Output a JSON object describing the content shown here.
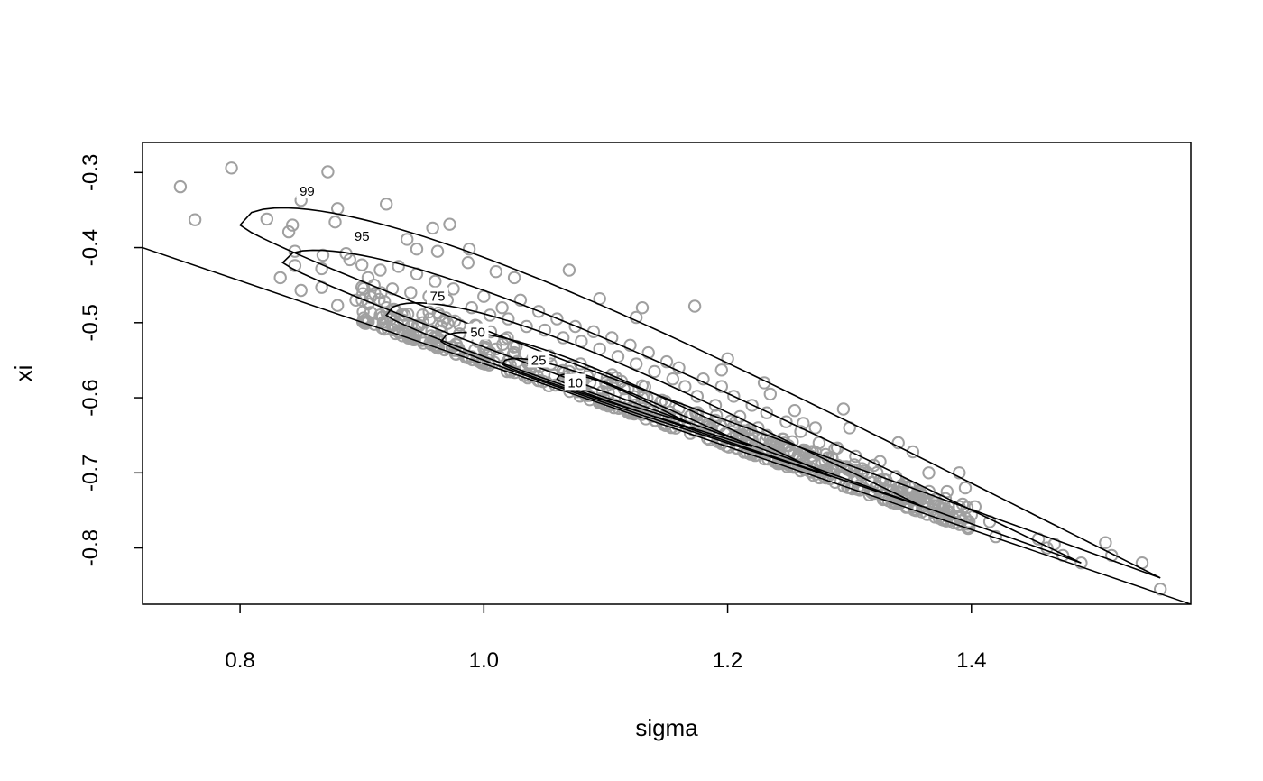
{
  "chart_data": {
    "type": "scatter",
    "title": "",
    "xlabel": "sigma",
    "ylabel": "xi",
    "xlim": [
      0.72,
      1.58
    ],
    "ylim": [
      -0.875,
      -0.26
    ],
    "x_ticks": [
      0.8,
      1.0,
      1.2,
      1.4
    ],
    "x_tick_labels": [
      "0.8",
      "1.0",
      "1.2",
      "1.4"
    ],
    "y_ticks": [
      -0.3,
      -0.4,
      -0.5,
      -0.6,
      -0.7,
      -0.8
    ],
    "y_tick_labels": [
      "-0.3",
      "-0.4",
      "-0.5",
      "-0.6",
      "-0.7",
      "-0.8"
    ],
    "point_color": "#a0a0a0",
    "line_color": "#000000",
    "boundary_line": {
      "x": [
        0.72,
        1.58
      ],
      "y": [
        -0.4,
        -0.875
      ]
    },
    "contours": [
      {
        "level": 99,
        "label": "99",
        "sigma_min": 0.8,
        "sigma_max": 1.555,
        "xi_at_min": -0.37,
        "xi_at_max": -0.84,
        "center_sigma": 1.18,
        "center_xi": -0.605,
        "half_width": 0.051,
        "label_sigma": 0.855,
        "label_xi": -0.325
      },
      {
        "level": 95,
        "label": "95",
        "sigma_min": 0.835,
        "sigma_max": 1.49,
        "xi_at_min": -0.42,
        "xi_at_max": -0.82,
        "center_sigma": 1.165,
        "center_xi": -0.62,
        "half_width": 0.04,
        "label_sigma": 0.9,
        "label_xi": -0.385
      },
      {
        "level": 75,
        "label": "75",
        "sigma_min": 0.92,
        "sigma_max": 1.36,
        "xi_at_min": -0.49,
        "xi_at_max": -0.745,
        "center_sigma": 1.14,
        "center_xi": -0.615,
        "half_width": 0.032,
        "label_sigma": 0.962,
        "label_xi": -0.465
      },
      {
        "level": 50,
        "label": "50",
        "sigma_min": 0.965,
        "sigma_max": 1.285,
        "xi_at_min": -0.525,
        "xi_at_max": -0.705,
        "center_sigma": 1.125,
        "center_xi": -0.615,
        "half_width": 0.023,
        "label_sigma": 0.995,
        "label_xi": -0.513
      },
      {
        "level": 25,
        "label": "25",
        "sigma_min": 1.015,
        "sigma_max": 1.22,
        "xi_at_min": -0.555,
        "xi_at_max": -0.665,
        "center_sigma": 1.118,
        "center_xi": -0.61,
        "half_width": 0.014,
        "label_sigma": 1.045,
        "label_xi": -0.55
      },
      {
        "level": 10,
        "label": "10",
        "sigma_min": 1.06,
        "sigma_max": 1.17,
        "xi_at_min": -0.575,
        "xi_at_max": -0.635,
        "center_sigma": 1.115,
        "center_xi": -0.605,
        "half_width": 0.01,
        "label_sigma": 1.075,
        "label_xi": -0.58
      }
    ],
    "points_main": [
      [
        0.751,
        -0.319
      ],
      [
        0.793,
        -0.294
      ],
      [
        0.872,
        -0.299
      ],
      [
        0.763,
        -0.363
      ],
      [
        0.822,
        -0.362
      ],
      [
        0.85,
        -0.337
      ],
      [
        0.88,
        -0.348
      ],
      [
        0.878,
        -0.366
      ],
      [
        0.843,
        -0.37
      ],
      [
        0.84,
        -0.379
      ],
      [
        0.92,
        -0.342
      ],
      [
        0.958,
        -0.374
      ],
      [
        0.972,
        -0.369
      ],
      [
        0.937,
        -0.389
      ],
      [
        0.945,
        -0.402
      ],
      [
        0.962,
        -0.405
      ],
      [
        0.988,
        -0.402
      ],
      [
        0.887,
        -0.408
      ],
      [
        0.89,
        -0.416
      ],
      [
        0.9,
        -0.423
      ],
      [
        0.845,
        -0.405
      ],
      [
        0.845,
        -0.424
      ],
      [
        0.867,
        -0.428
      ],
      [
        0.868,
        -0.41
      ],
      [
        0.833,
        -0.44
      ],
      [
        0.85,
        -0.457
      ],
      [
        0.867,
        -0.453
      ],
      [
        0.88,
        -0.477
      ],
      [
        0.987,
        -0.42
      ],
      [
        1.01,
        -0.432
      ],
      [
        1.025,
        -0.44
      ],
      [
        1.07,
        -0.43
      ],
      [
        1.125,
        -0.493
      ],
      [
        1.13,
        -0.48
      ],
      [
        1.173,
        -0.478
      ],
      [
        1.095,
        -0.468
      ],
      [
        1.2,
        -0.548
      ],
      [
        1.195,
        -0.563
      ],
      [
        1.23,
        -0.58
      ],
      [
        1.235,
        -0.595
      ],
      [
        1.255,
        -0.617
      ],
      [
        1.262,
        -0.634
      ],
      [
        1.272,
        -0.64
      ],
      [
        1.29,
        -0.667
      ],
      [
        1.295,
        -0.615
      ],
      [
        1.3,
        -0.64
      ],
      [
        1.325,
        -0.685
      ],
      [
        1.34,
        -0.66
      ],
      [
        1.352,
        -0.672
      ],
      [
        1.365,
        -0.7
      ],
      [
        1.38,
        -0.725
      ],
      [
        1.39,
        -0.7
      ],
      [
        1.395,
        -0.72
      ],
      [
        1.39,
        -0.745
      ],
      [
        1.39,
        -0.76
      ],
      [
        1.385,
        -0.76
      ],
      [
        1.4,
        -0.756
      ],
      [
        1.403,
        -0.745
      ],
      [
        1.398,
        -0.765
      ],
      [
        1.415,
        -0.765
      ],
      [
        1.42,
        -0.785
      ],
      [
        1.455,
        -0.788
      ],
      [
        1.462,
        -0.8
      ],
      [
        1.468,
        -0.795
      ],
      [
        1.475,
        -0.81
      ],
      [
        1.49,
        -0.82
      ],
      [
        1.51,
        -0.793
      ],
      [
        1.515,
        -0.81
      ],
      [
        1.54,
        -0.82
      ],
      [
        1.555,
        -0.855
      ],
      [
        1.35,
        -0.72
      ],
      [
        1.36,
        -0.73
      ],
      [
        1.33,
        -0.71
      ],
      [
        1.315,
        -0.7
      ],
      [
        1.3,
        -0.695
      ],
      [
        1.282,
        -0.68
      ],
      [
        1.268,
        -0.672
      ],
      [
        1.245,
        -0.655
      ],
      [
        1.225,
        -0.64
      ],
      [
        1.21,
        -0.625
      ],
      [
        1.19,
        -0.61
      ],
      [
        1.175,
        -0.598
      ],
      [
        1.165,
        -0.585
      ],
      [
        1.155,
        -0.575
      ],
      [
        1.14,
        -0.565
      ],
      [
        1.125,
        -0.555
      ],
      [
        1.11,
        -0.545
      ],
      [
        1.095,
        -0.535
      ],
      [
        1.08,
        -0.525
      ],
      [
        1.065,
        -0.52
      ],
      [
        1.05,
        -0.51
      ],
      [
        1.035,
        -0.505
      ],
      [
        1.02,
        -0.495
      ],
      [
        1.005,
        -0.49
      ],
      [
        0.99,
        -0.48
      ],
      [
        0.97,
        -0.47
      ],
      [
        0.955,
        -0.465
      ],
      [
        0.94,
        -0.46
      ],
      [
        0.925,
        -0.455
      ],
      [
        0.91,
        -0.45
      ],
      [
        0.905,
        -0.44
      ],
      [
        0.915,
        -0.43
      ],
      [
        0.93,
        -0.425
      ],
      [
        0.945,
        -0.435
      ],
      [
        0.96,
        -0.445
      ],
      [
        0.975,
        -0.455
      ],
      [
        1.0,
        -0.465
      ],
      [
        1.015,
        -0.48
      ],
      [
        1.03,
        -0.47
      ],
      [
        1.045,
        -0.485
      ],
      [
        1.06,
        -0.495
      ],
      [
        1.075,
        -0.505
      ],
      [
        1.09,
        -0.512
      ],
      [
        1.105,
        -0.52
      ],
      [
        1.12,
        -0.53
      ],
      [
        1.135,
        -0.54
      ],
      [
        1.15,
        -0.552
      ],
      [
        1.16,
        -0.56
      ],
      [
        1.18,
        -0.575
      ],
      [
        1.195,
        -0.585
      ],
      [
        1.205,
        -0.598
      ],
      [
        1.22,
        -0.61
      ],
      [
        1.232,
        -0.62
      ],
      [
        1.248,
        -0.632
      ],
      [
        1.26,
        -0.645
      ],
      [
        1.275,
        -0.66
      ],
      [
        1.288,
        -0.668
      ],
      [
        1.305,
        -0.678
      ],
      [
        1.32,
        -0.69
      ],
      [
        1.338,
        -0.705
      ],
      [
        1.345,
        -0.715
      ],
      [
        1.355,
        -0.73
      ],
      [
        1.37,
        -0.74
      ],
      [
        1.375,
        -0.748
      ],
      [
        1.382,
        -0.752
      ],
      [
        0.895,
        -0.47
      ],
      [
        0.905,
        -0.475
      ],
      [
        0.92,
        -0.48
      ],
      [
        0.935,
        -0.49
      ],
      [
        0.95,
        -0.5
      ],
      [
        0.965,
        -0.505
      ],
      [
        0.98,
        -0.515
      ],
      [
        0.995,
        -0.525
      ],
      [
        1.01,
        -0.535
      ],
      [
        1.025,
        -0.54
      ],
      [
        1.04,
        -0.548
      ],
      [
        1.055,
        -0.555
      ],
      [
        1.07,
        -0.565
      ],
      [
        1.085,
        -0.572
      ],
      [
        1.1,
        -0.58
      ],
      [
        1.115,
        -0.588
      ],
      [
        1.13,
        -0.6
      ],
      [
        1.145,
        -0.606
      ],
      [
        1.16,
        -0.614
      ],
      [
        1.175,
        -0.624
      ],
      [
        1.19,
        -0.63
      ],
      [
        1.205,
        -0.638
      ],
      [
        1.22,
        -0.648
      ],
      [
        1.235,
        -0.656
      ],
      [
        1.25,
        -0.664
      ],
      [
        1.265,
        -0.674
      ],
      [
        1.28,
        -0.684
      ],
      [
        1.295,
        -0.692
      ],
      [
        1.31,
        -0.7
      ],
      [
        1.325,
        -0.71
      ],
      [
        1.34,
        -0.72
      ],
      [
        1.355,
        -0.735
      ],
      [
        1.37,
        -0.745
      ],
      [
        1.38,
        -0.755
      ],
      [
        1.395,
        -0.76
      ]
    ]
  }
}
